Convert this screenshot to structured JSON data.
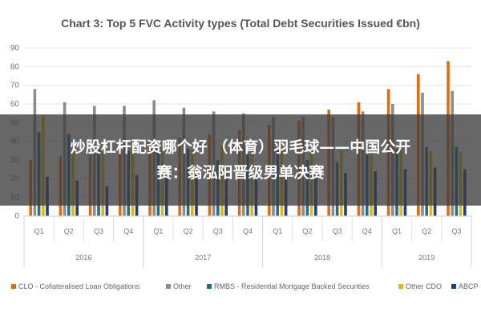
{
  "chart_data": {
    "type": "bar",
    "title": "Chart 3: Top 5 FVC Activity types (Total Debt Securities Issued €bn)",
    "xlabel": "",
    "ylabel": "",
    "ylim": [
      0,
      90
    ],
    "yticks": [
      0,
      10,
      20,
      30,
      40,
      50,
      60,
      70,
      80,
      90
    ],
    "grid": true,
    "legend_position": "bottom",
    "categories": [
      "Q1",
      "Q2",
      "Q3",
      "Q4",
      "Q1",
      "Q2",
      "Q3",
      "Q4",
      "Q1",
      "Q2",
      "Q3",
      "Q4",
      "Q1",
      "Q2",
      "Q3"
    ],
    "years": [
      {
        "label": "2016",
        "start": 0,
        "end": 3
      },
      {
        "label": "2017",
        "start": 4,
        "end": 7
      },
      {
        "label": "2018",
        "start": 8,
        "end": 11
      },
      {
        "label": "2019",
        "start": 12,
        "end": 14
      }
    ],
    "series": [
      {
        "name": "CLO - Collateralised Loan Obligations",
        "color": "#e46c0a",
        "values": [
          30,
          32,
          33,
          35,
          40,
          42,
          44,
          46,
          49,
          51,
          57,
          61,
          68,
          76,
          83
        ]
      },
      {
        "name": "Other",
        "color": "#8c8c8c",
        "values": [
          68,
          61,
          59,
          59,
          62,
          58,
          56,
          55,
          53,
          53,
          53,
          56,
          60,
          66,
          67
        ]
      },
      {
        "name": "RMBS - Residential Mortgage Backed Securities",
        "color": "#1f6e8c",
        "values": [
          45,
          44,
          36,
          35,
          37,
          36,
          30,
          33,
          35,
          30,
          29,
          37,
          36,
          37,
          37
        ]
      },
      {
        "name": "Other CDO",
        "color": "#e6b800",
        "values": [
          54,
          37,
          38,
          39,
          38,
          35,
          38,
          35,
          37,
          36,
          35,
          34,
          36,
          35,
          34
        ]
      },
      {
        "name": "ABCP",
        "color": "#1f3d8f",
        "values": [
          21,
          19,
          16,
          22,
          21,
          22,
          22,
          23,
          23,
          24,
          23,
          24,
          25,
          26,
          25
        ]
      }
    ]
  },
  "overlay": {
    "text": "炒股杠杆配资哪个好 （体育）羽毛球——中国公开赛：翁泓阳晋级男单决赛"
  }
}
